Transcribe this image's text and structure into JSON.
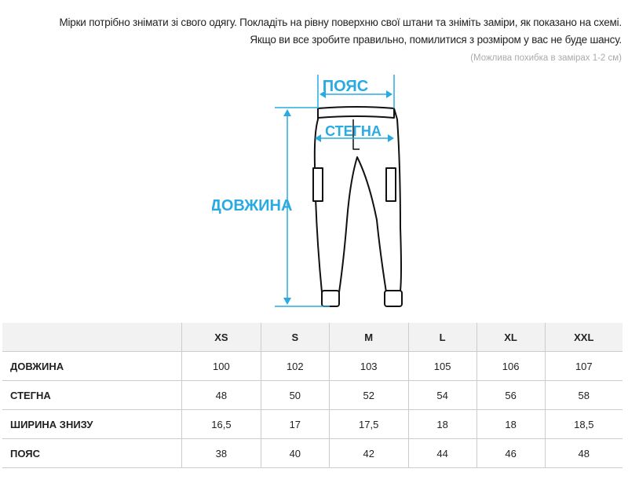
{
  "intro": {
    "line1": "Мірки потрібно знімати зі свого одягу. Покладіть на рівну поверхню свої штани та зніміть заміри, як показано на схемі.",
    "line2": "Якщо ви все зробите правильно, помилитися з розміром у вас не буде шансу.",
    "note": "(Можлива похибка в замірах 1-2 см)"
  },
  "diagram": {
    "waist_label": "ПОЯС",
    "hips_label": "СТЕГНА",
    "length_label": "ДОВЖИНА",
    "accent_color": "#29abe2"
  },
  "table": {
    "headers": [
      "",
      "XS",
      "S",
      "M",
      "L",
      "XL",
      "XXL"
    ],
    "rows": [
      {
        "label": "ДОВЖИНА",
        "values": [
          "100",
          "102",
          "103",
          "105",
          "106",
          "107"
        ]
      },
      {
        "label": "СТЕГНА",
        "values": [
          "48",
          "50",
          "52",
          "54",
          "56",
          "58"
        ]
      },
      {
        "label": "ШИРИНА ЗНИЗУ",
        "values": [
          "16,5",
          "17",
          "17,5",
          "18",
          "18",
          "18,5"
        ]
      },
      {
        "label": "ПОЯС",
        "values": [
          "38",
          "40",
          "42",
          "44",
          "46",
          "48"
        ]
      }
    ]
  }
}
